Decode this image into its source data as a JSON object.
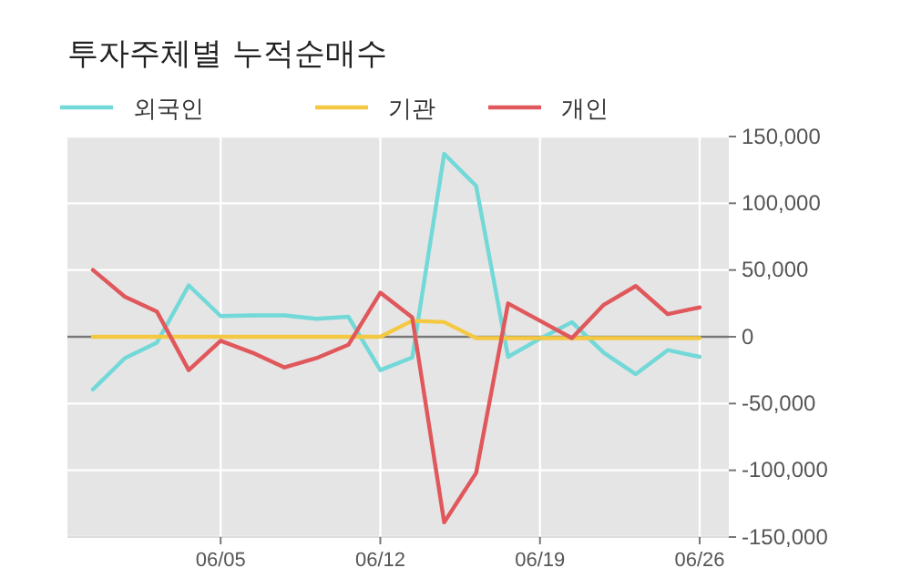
{
  "chart_data": {
    "type": "line",
    "title": "투자주체별 누적순매수",
    "categories": [
      null,
      null,
      null,
      null,
      "06/05",
      null,
      null,
      null,
      null,
      "06/12",
      null,
      null,
      null,
      null,
      "06/19",
      null,
      null,
      null,
      null,
      "06/26"
    ],
    "series": [
      {
        "name": "외국인",
        "color": "#72d8d8",
        "values": [
          -39500,
          -16000,
          -4500,
          38500,
          15500,
          16000,
          16000,
          13500,
          15000,
          -25000,
          -15500,
          137000,
          113000,
          -15000,
          -1500,
          11000,
          -12000,
          -28000,
          -10000,
          -15000
        ]
      },
      {
        "name": "기관",
        "color": "#f5c842",
        "values": [
          0,
          0,
          0,
          0,
          0,
          0,
          0,
          0,
          0,
          0,
          12000,
          11000,
          -1000,
          -1000,
          -1000,
          -1000,
          -1000,
          -1000,
          -1000,
          -1000
        ]
      },
      {
        "name": "개인",
        "color": "#e0585b",
        "values": [
          50000,
          30000,
          19000,
          -25000,
          -3000,
          -12000,
          -23000,
          -16000,
          -6000,
          33000,
          14500,
          -139000,
          -102000,
          25000,
          12000,
          -1000,
          24000,
          38000,
          17000,
          22000
        ]
      }
    ],
    "ylim": [
      -150000,
      150000
    ],
    "yticks": [
      {
        "value": -150000,
        "label": "-150,000"
      },
      {
        "value": -100000,
        "label": "-100,000"
      },
      {
        "value": -50000,
        "label": "-50,000"
      },
      0,
      {
        "value": 50000,
        "label": "50,000"
      },
      {
        "value": 100000,
        "label": "100,000"
      },
      {
        "value": 150000,
        "label": "150,000"
      }
    ],
    "ref_lines": [
      {
        "axis": "y",
        "value": 0,
        "color": "#777777"
      }
    ],
    "grid": true,
    "legend": "top",
    "marker": "none",
    "line_style": "solid"
  }
}
